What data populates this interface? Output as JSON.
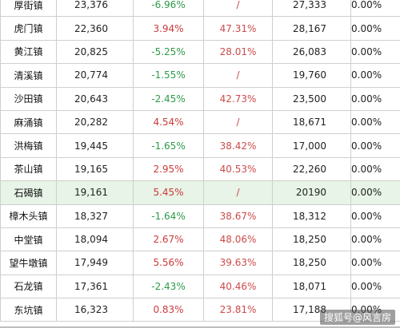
{
  "table": {
    "rows": [
      {
        "name": "厚街镇",
        "population": "23,376",
        "growth": "-6.96%",
        "growth_sign": "neg",
        "share": "/",
        "prev": "27,333",
        "pct": "0.00%"
      },
      {
        "name": "虎门镇",
        "population": "22,360",
        "growth": "3.94%",
        "growth_sign": "pos",
        "share": "47.31%",
        "prev": "28,167",
        "pct": "0.00%"
      },
      {
        "name": "黄江镇",
        "population": "20,825",
        "growth": "-5.25%",
        "growth_sign": "neg",
        "share": "28.01%",
        "prev": "26,083",
        "pct": "0.00%"
      },
      {
        "name": "清溪镇",
        "population": "20,774",
        "growth": "-1.55%",
        "growth_sign": "neg",
        "share": "/",
        "prev": "19,760",
        "pct": "0.00%"
      },
      {
        "name": "沙田镇",
        "population": "20,643",
        "growth": "-2.45%",
        "growth_sign": "neg",
        "share": "42.73%",
        "prev": "23,500",
        "pct": "0.00%"
      },
      {
        "name": "麻涌镇",
        "population": "20,282",
        "growth": "4.54%",
        "growth_sign": "pos",
        "share": "/",
        "prev": "18,671",
        "pct": "0.00%"
      },
      {
        "name": "洪梅镇",
        "population": "19,445",
        "growth": "-1.65%",
        "growth_sign": "neg",
        "share": "38.42%",
        "prev": "17,000",
        "pct": "0.00%"
      },
      {
        "name": "茶山镇",
        "population": "19,165",
        "growth": "2.95%",
        "growth_sign": "pos",
        "share": "40.53%",
        "prev": "22,260",
        "pct": "0.00%"
      },
      {
        "name": "石碣镇",
        "population": "19,161",
        "growth": "5.45%",
        "growth_sign": "pos",
        "share": "/",
        "prev": "20190",
        "pct": "0.00%",
        "highlight": true
      },
      {
        "name": "樟木头镇",
        "population": "18,327",
        "growth": "-1.64%",
        "growth_sign": "neg",
        "share": "38.67%",
        "prev": "18,312",
        "pct": "0.00%"
      },
      {
        "name": "中堂镇",
        "population": "18,094",
        "growth": "2.67%",
        "growth_sign": "pos",
        "share": "48.06%",
        "prev": "18,250",
        "pct": "0.00%"
      },
      {
        "name": "望牛墩镇",
        "population": "17,949",
        "growth": "5.56%",
        "growth_sign": "pos",
        "share": "39.63%",
        "prev": "18,250",
        "pct": "0.00%"
      },
      {
        "name": "石龙镇",
        "population": "17,361",
        "growth": "-2.43%",
        "growth_sign": "neg",
        "share": "40.46%",
        "prev": "18,071",
        "pct": "0.00%"
      },
      {
        "name": "东坑镇",
        "population": "16,323",
        "growth": "0.83%",
        "growth_sign": "pos",
        "share": "23.81%",
        "prev": "17,188",
        "pct": "0.00%"
      }
    ]
  },
  "colors": {
    "negative": "#2e9a4a",
    "positive": "#cc3a3a",
    "highlight_row": "#e7f4e7"
  },
  "watermark": "搜狐号@风言房"
}
